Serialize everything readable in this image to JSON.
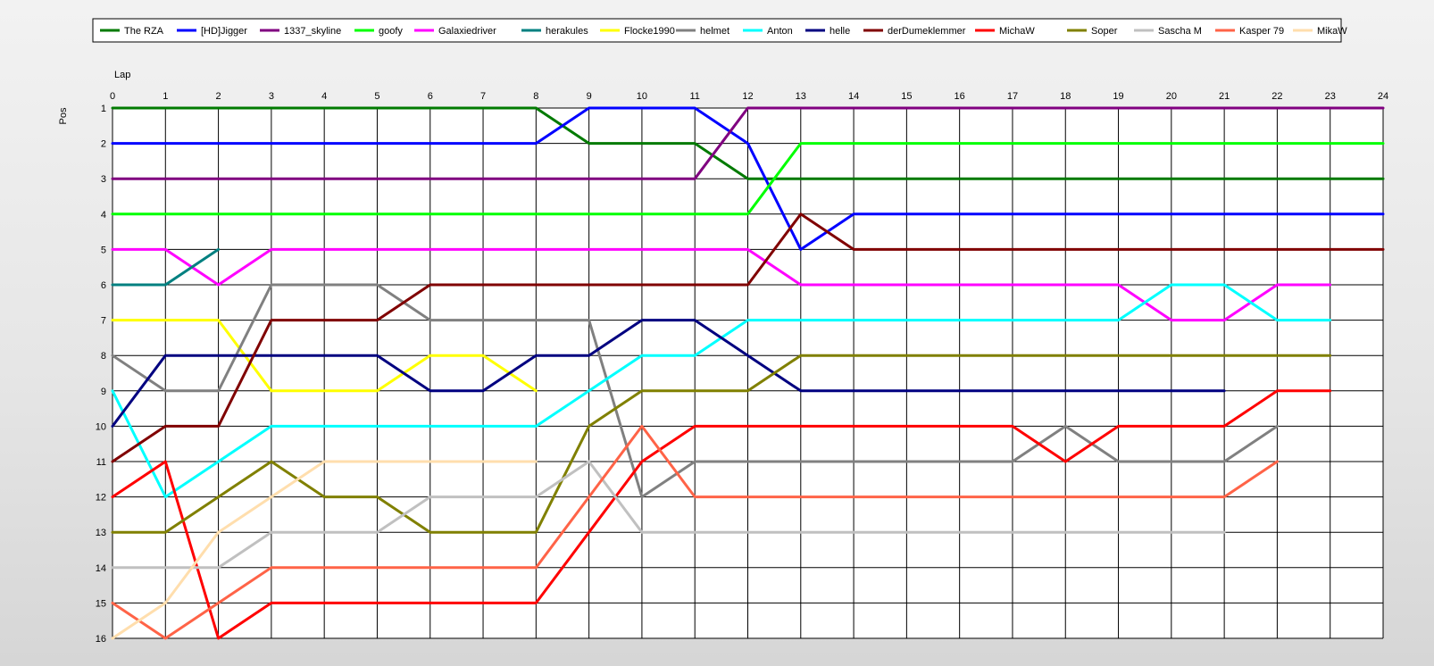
{
  "chart_data": {
    "type": "line",
    "xlabel": "Lap",
    "ylabel": "Pos",
    "x_ticks": [
      "0",
      "1",
      "2",
      "3",
      "4",
      "5",
      "6",
      "7",
      "8",
      "9",
      "10",
      "11",
      "12",
      "13",
      "14",
      "15",
      "16",
      "17",
      "18",
      "19",
      "20",
      "21",
      "22",
      "23",
      "24"
    ],
    "y_ticks": [
      "1",
      "2",
      "3",
      "4",
      "5",
      "6",
      "7",
      "8",
      "9",
      "10",
      "11",
      "12",
      "13",
      "14",
      "15",
      "16"
    ],
    "xlim": [
      0,
      24
    ],
    "ylim": [
      1,
      16
    ],
    "y_inverted": true,
    "grid": true,
    "legend_position": "top",
    "series": [
      {
        "name": "The RZA",
        "color": "#007a00",
        "values": [
          1,
          1,
          1,
          1,
          1,
          1,
          1,
          1,
          1,
          2,
          2,
          2,
          3,
          3,
          3,
          3,
          3,
          3,
          3,
          3,
          3,
          3,
          3,
          3,
          3
        ]
      },
      {
        "name": "[HD]Jigger",
        "color": "#0000ff",
        "values": [
          2,
          2,
          2,
          2,
          2,
          2,
          2,
          2,
          2,
          1,
          1,
          1,
          2,
          5,
          4,
          4,
          4,
          4,
          4,
          4,
          4,
          4,
          4,
          4,
          4
        ]
      },
      {
        "name": "1337_skyline",
        "color": "#800080",
        "values": [
          3,
          3,
          3,
          3,
          3,
          3,
          3,
          3,
          3,
          3,
          3,
          3,
          1,
          1,
          1,
          1,
          1,
          1,
          1,
          1,
          1,
          1,
          1,
          1,
          1
        ]
      },
      {
        "name": "goofy",
        "color": "#00ff00",
        "values": [
          4,
          4,
          4,
          4,
          4,
          4,
          4,
          4,
          4,
          4,
          4,
          4,
          4,
          2,
          2,
          2,
          2,
          2,
          2,
          2,
          2,
          2,
          2,
          2,
          2
        ]
      },
      {
        "name": "Galaxiedriver",
        "color": "#ff00ff",
        "values": [
          5,
          5,
          6,
          5,
          5,
          5,
          5,
          5,
          5,
          5,
          5,
          5,
          5,
          6,
          6,
          6,
          6,
          6,
          6,
          6,
          7,
          7,
          6,
          6
        ]
      },
      {
        "name": "herakules",
        "color": "#008080",
        "values": [
          6,
          6,
          5
        ]
      },
      {
        "name": "Flocke1990",
        "color": "#ffff00",
        "values": [
          7,
          7,
          7,
          9,
          9,
          9,
          8,
          8,
          9
        ]
      },
      {
        "name": "helmet",
        "color": "#808080",
        "values": [
          8,
          9,
          9,
          6,
          6,
          6,
          7,
          7,
          7,
          7,
          12,
          11,
          11,
          11,
          11,
          11,
          11,
          11,
          10,
          11,
          11,
          11,
          10
        ]
      },
      {
        "name": "Anton",
        "color": "#00ffff",
        "values": [
          9,
          12,
          11,
          10,
          10,
          10,
          10,
          10,
          10,
          9,
          8,
          8,
          7,
          7,
          7,
          7,
          7,
          7,
          7,
          7,
          6,
          6,
          7,
          7
        ]
      },
      {
        "name": "helle",
        "color": "#000080",
        "values": [
          10,
          8,
          8,
          8,
          8,
          8,
          9,
          9,
          8,
          8,
          7,
          7,
          8,
          9,
          9,
          9,
          9,
          9,
          9,
          9,
          9,
          9
        ]
      },
      {
        "name": "derDumeklemmer",
        "color": "#800000",
        "values": [
          11,
          10,
          10,
          7,
          7,
          7,
          6,
          6,
          6,
          6,
          6,
          6,
          6,
          4,
          5,
          5,
          5,
          5,
          5,
          5,
          5,
          5,
          5,
          5,
          5
        ]
      },
      {
        "name": "MichaW",
        "color": "#ff0000",
        "values": [
          12,
          11,
          16,
          15,
          15,
          15,
          15,
          15,
          15,
          13,
          11,
          10,
          10,
          10,
          10,
          10,
          10,
          10,
          11,
          10,
          10,
          10,
          9,
          9
        ]
      },
      {
        "name": "Soper",
        "color": "#808000",
        "values": [
          13,
          13,
          12,
          11,
          12,
          12,
          13,
          13,
          13,
          10,
          9,
          9,
          9,
          8,
          8,
          8,
          8,
          8,
          8,
          8,
          8,
          8,
          8,
          8
        ]
      },
      {
        "name": "Sascha M",
        "color": "#c0c0c0",
        "values": [
          14,
          14,
          14,
          13,
          13,
          13,
          12,
          12,
          12,
          11,
          13,
          13,
          13,
          13,
          13,
          13,
          13,
          13,
          13,
          13,
          13,
          13
        ]
      },
      {
        "name": "Kasper 79",
        "color": "#ff6347",
        "values": [
          15,
          16,
          15,
          14,
          14,
          14,
          14,
          14,
          14,
          12,
          10,
          12,
          12,
          12,
          12,
          12,
          12,
          12,
          12,
          12,
          12,
          12,
          11
        ]
      },
      {
        "name": "MikaW",
        "color": "#ffdead",
        "values": [
          16,
          15,
          13,
          12,
          11,
          11,
          11,
          11,
          11
        ]
      }
    ]
  }
}
